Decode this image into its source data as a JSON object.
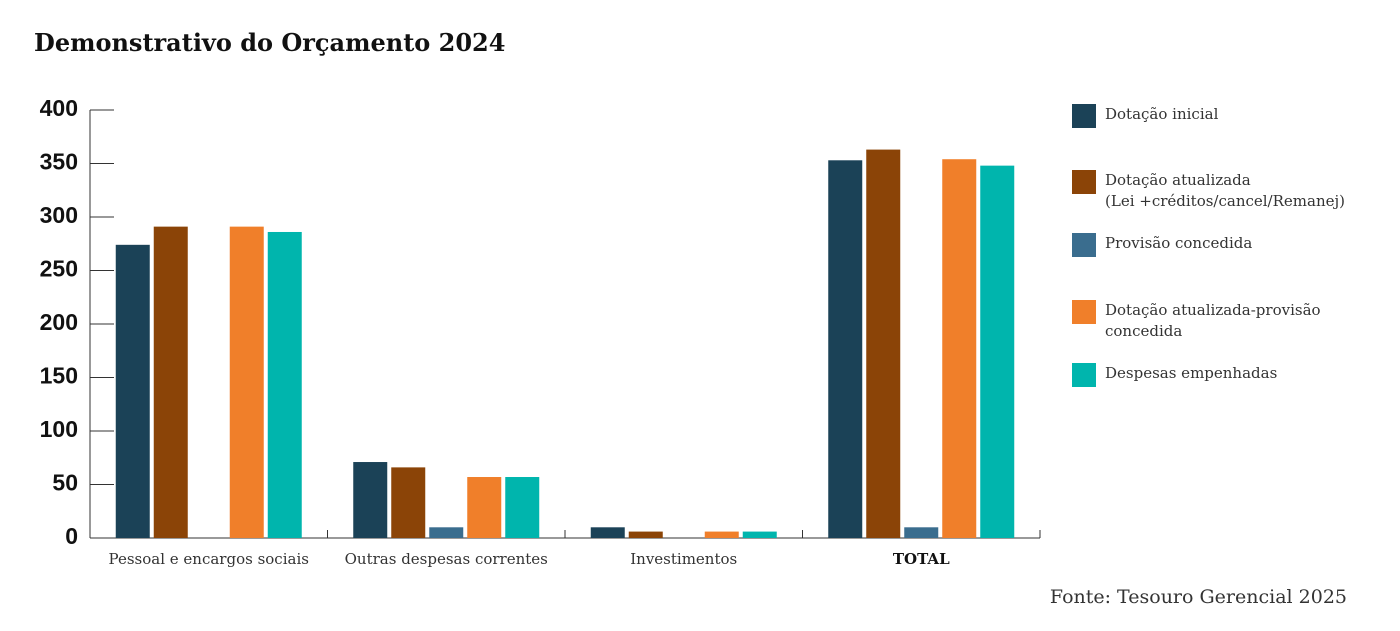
{
  "chart_data": {
    "type": "bar",
    "title": "Demonstrativo do Orçamento 2024",
    "source": "Fonte: Tesouro Gerencial 2025",
    "categories": [
      "Pessoal e encargos sociais",
      "Outras despesas correntes",
      "Investimentos",
      "TOTAL"
    ],
    "series": [
      {
        "name": "Dotação inicial",
        "color": "#1b4257",
        "values": [
          274,
          71,
          10,
          353
        ]
      },
      {
        "name": "Dotação atualizada\n(Lei +créditos/cancel/Remanej)",
        "color": "#8b4407",
        "values": [
          291,
          66,
          6,
          363
        ]
      },
      {
        "name": "Provisão concedida",
        "color": "#3a6d8e",
        "values": [
          0,
          10,
          0,
          10
        ]
      },
      {
        "name": "Dotação atualizada-provisão\nconcedida",
        "color": "#f07f2a",
        "values": [
          291,
          57,
          6,
          354
        ]
      },
      {
        "name": "Despesas empenhadas",
        "color": "#00b5ad",
        "values": [
          286,
          57,
          6,
          348
        ]
      }
    ],
    "ylim": [
      0,
      400
    ],
    "yticks": [
      0,
      50,
      100,
      150,
      200,
      250,
      300,
      350,
      400
    ]
  }
}
